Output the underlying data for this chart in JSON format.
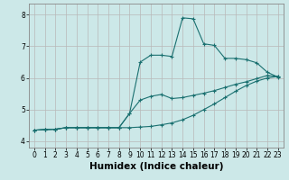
{
  "bg_color": "#cce8e8",
  "grid_color": "#b8b8b8",
  "line_color": "#1a7070",
  "marker": "+",
  "xlabel": "Humidex (Indice chaleur)",
  "xlabel_fontsize": 7.5,
  "xlim": [
    -0.5,
    23.5
  ],
  "ylim": [
    3.8,
    8.35
  ],
  "yticks": [
    4,
    5,
    6,
    7,
    8
  ],
  "xticks": [
    0,
    1,
    2,
    3,
    4,
    5,
    6,
    7,
    8,
    9,
    10,
    11,
    12,
    13,
    14,
    15,
    16,
    17,
    18,
    19,
    20,
    21,
    22,
    23
  ],
  "line1_x": [
    0,
    1,
    2,
    3,
    4,
    5,
    6,
    7,
    8,
    9,
    10,
    11,
    12,
    13,
    14,
    15,
    16,
    17,
    18,
    19,
    20,
    21,
    22,
    23
  ],
  "line1_y": [
    4.35,
    4.37,
    4.38,
    4.43,
    4.43,
    4.43,
    4.43,
    4.43,
    4.43,
    4.43,
    4.45,
    4.47,
    4.52,
    4.58,
    4.68,
    4.82,
    5.0,
    5.18,
    5.38,
    5.58,
    5.76,
    5.9,
    6.0,
    6.05
  ],
  "line2_x": [
    0,
    1,
    2,
    3,
    4,
    5,
    6,
    7,
    8,
    9,
    10,
    11,
    12,
    13,
    14,
    15,
    16,
    17,
    18,
    19,
    20,
    21,
    22,
    23
  ],
  "line2_y": [
    4.35,
    4.37,
    4.38,
    4.43,
    4.43,
    4.43,
    4.43,
    4.43,
    4.43,
    4.88,
    5.3,
    5.42,
    5.48,
    5.35,
    5.38,
    5.45,
    5.52,
    5.6,
    5.7,
    5.8,
    5.88,
    5.98,
    6.08,
    6.05
  ],
  "line3_x": [
    0,
    1,
    2,
    3,
    4,
    5,
    6,
    7,
    8,
    9,
    10,
    11,
    12,
    13,
    14,
    15,
    16,
    17,
    18,
    19,
    20,
    21,
    22,
    23
  ],
  "line3_y": [
    4.35,
    4.37,
    4.38,
    4.43,
    4.43,
    4.43,
    4.43,
    4.43,
    4.43,
    4.88,
    6.5,
    6.72,
    6.72,
    6.68,
    7.9,
    7.87,
    7.08,
    7.03,
    6.62,
    6.62,
    6.58,
    6.48,
    6.18,
    6.03
  ]
}
